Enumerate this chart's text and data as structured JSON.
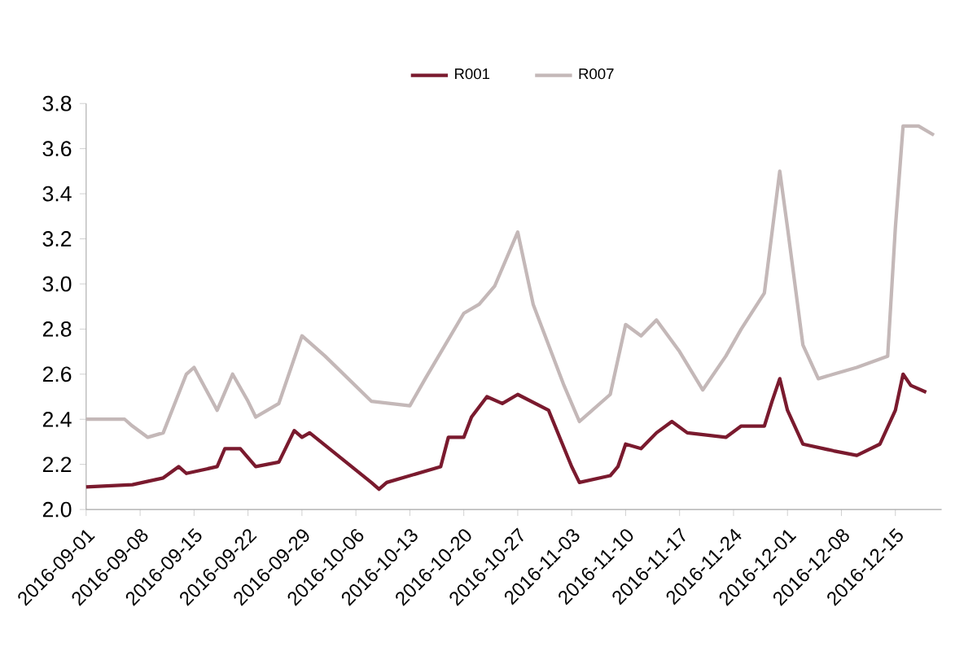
{
  "chart_data": {
    "type": "line",
    "legend": "top",
    "xlim": [
      "2016-09-01",
      "2016-12-21"
    ],
    "ylim": [
      2.0,
      3.8
    ],
    "yticks": [
      {
        "value": 2.0,
        "label": "2.0"
      },
      2.2,
      2.4,
      2.6,
      2.8,
      {
        "value": 3.0,
        "label": "3.0"
      },
      3.2,
      3.4,
      3.6,
      3.8
    ],
    "xticks": [
      "2016-09-01",
      "2016-09-08",
      "2016-09-15",
      "2016-09-22",
      "2016-09-29",
      "2016-10-06",
      "2016-10-13",
      "2016-10-20",
      "2016-10-27",
      "2016-11-03",
      "2016-11-10",
      "2016-11-17",
      "2016-11-24",
      "2016-12-01",
      "2016-12-08",
      "2016-12-15"
    ],
    "series": [
      {
        "name": "R001",
        "color": "#7a1a2e",
        "x": [
          "2016-09-01",
          "2016-09-07",
          "2016-09-11",
          "2016-09-13",
          "2016-09-14",
          "2016-09-18",
          "2016-09-19",
          "2016-09-21",
          "2016-09-23",
          "2016-09-26",
          "2016-09-28",
          "2016-09-29",
          "2016-09-30",
          "2016-10-08",
          "2016-10-09",
          "2016-10-10",
          "2016-10-17",
          "2016-10-18",
          "2016-10-20",
          "2016-10-21",
          "2016-10-23",
          "2016-10-25",
          "2016-10-27",
          "2016-10-31",
          "2016-11-03",
          "2016-11-04",
          "2016-11-08",
          "2016-11-09",
          "2016-11-10",
          "2016-11-12",
          "2016-11-14",
          "2016-11-16",
          "2016-11-18",
          "2016-11-23",
          "2016-11-25",
          "2016-11-28",
          "2016-11-29",
          "2016-11-30",
          "2016-12-01",
          "2016-12-03",
          "2016-12-07",
          "2016-12-10",
          "2016-12-13",
          "2016-12-15",
          "2016-12-16",
          "2016-12-17",
          "2016-12-19"
        ],
        "values": [
          2.1,
          2.11,
          2.14,
          2.19,
          2.16,
          2.19,
          2.27,
          2.27,
          2.19,
          2.21,
          2.35,
          2.32,
          2.34,
          2.12,
          2.09,
          2.12,
          2.19,
          2.32,
          2.32,
          2.41,
          2.5,
          2.47,
          2.51,
          2.44,
          2.19,
          2.12,
          2.15,
          2.19,
          2.29,
          2.27,
          2.34,
          2.39,
          2.34,
          2.32,
          2.37,
          2.37,
          2.48,
          2.58,
          2.44,
          2.29,
          2.26,
          2.24,
          2.29,
          2.44,
          2.6,
          2.55,
          2.52
        ]
      },
      {
        "name": "R007",
        "color": "#c4b8b8",
        "x": [
          "2016-09-01",
          "2016-09-06",
          "2016-09-07",
          "2016-09-09",
          "2016-09-11",
          "2016-09-14",
          "2016-09-15",
          "2016-09-18",
          "2016-09-20",
          "2016-09-22",
          "2016-09-23",
          "2016-09-26",
          "2016-09-29",
          "2016-10-02",
          "2016-10-08",
          "2016-10-13",
          "2016-10-15",
          "2016-10-20",
          "2016-10-22",
          "2016-10-24",
          "2016-10-27",
          "2016-10-29",
          "2016-11-02",
          "2016-11-04",
          "2016-11-08",
          "2016-11-10",
          "2016-11-12",
          "2016-11-14",
          "2016-11-17",
          "2016-11-20",
          "2016-11-23",
          "2016-11-25",
          "2016-11-28",
          "2016-11-30",
          "2016-12-01",
          "2016-12-03",
          "2016-12-05",
          "2016-12-07",
          "2016-12-10",
          "2016-12-14",
          "2016-12-15",
          "2016-12-16",
          "2016-12-18",
          "2016-12-20"
        ],
        "values": [
          2.4,
          2.4,
          2.37,
          2.32,
          2.34,
          2.6,
          2.63,
          2.44,
          2.6,
          2.48,
          2.41,
          2.47,
          2.77,
          2.68,
          2.48,
          2.46,
          2.58,
          2.87,
          2.91,
          2.99,
          3.23,
          2.91,
          2.55,
          2.39,
          2.51,
          2.82,
          2.77,
          2.84,
          2.7,
          2.53,
          2.68,
          2.8,
          2.96,
          3.5,
          3.25,
          2.73,
          2.58,
          2.6,
          2.63,
          2.68,
          3.25,
          3.7,
          3.7,
          3.66
        ]
      }
    ]
  }
}
